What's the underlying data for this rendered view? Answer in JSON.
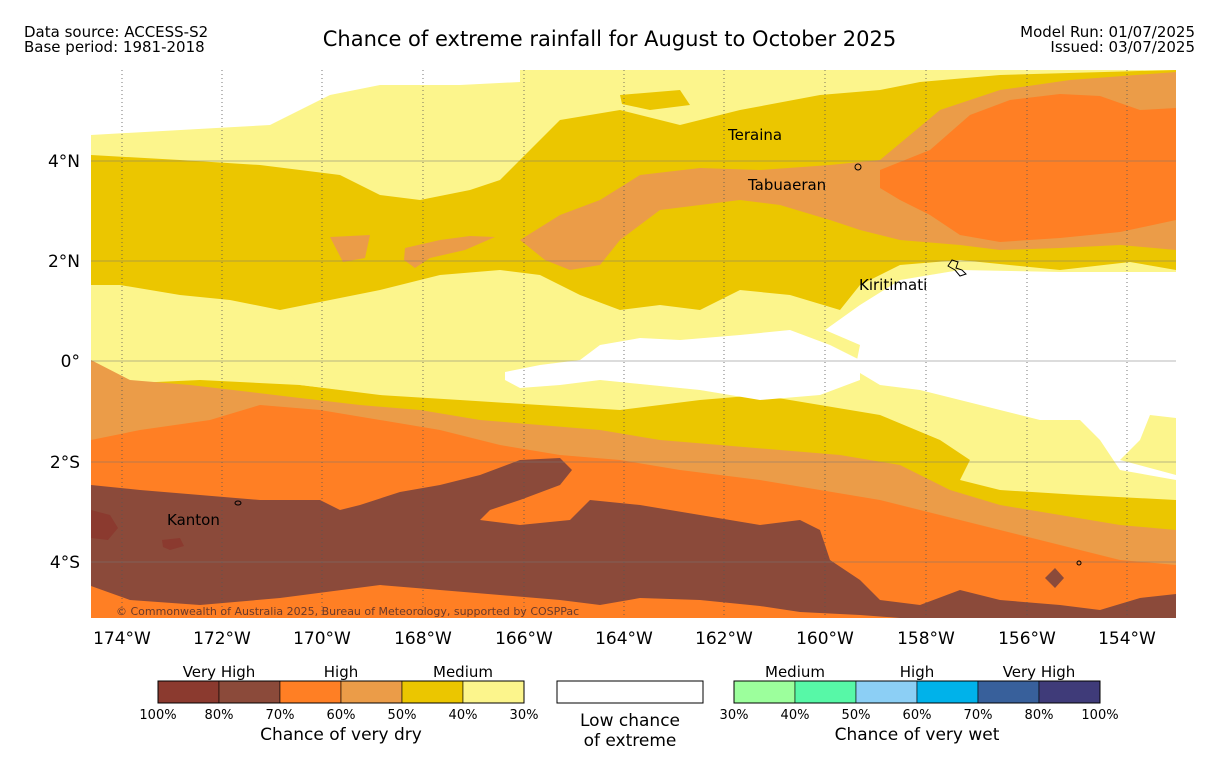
{
  "header": {
    "data_source": "Data source: ACCESS-S2",
    "base_period": "Base period: 1981-2018",
    "title": "Chance of extreme rainfall for August to October 2025",
    "model_run": "Model Run: 01/07/2025",
    "issued": "Issued: 03/07/2025"
  },
  "map": {
    "places": {
      "teraina": "Teraina",
      "tabuaeran": "Tabuaeran",
      "kiritimati": "Kiritimati",
      "kanton": "Kanton"
    },
    "copyright": "© Commonwealth of Australia 2025, Bureau of Meteorology, supported by COSPPac",
    "lon_ticks": [
      "174°W",
      "172°W",
      "170°W",
      "168°W",
      "166°W",
      "164°W",
      "162°W",
      "160°W",
      "158°W",
      "156°W",
      "154°W"
    ],
    "lat_ticks": [
      "4°N",
      "2°N",
      "0°",
      "2°S",
      "4°S"
    ]
  },
  "legend": {
    "dry": {
      "groups": [
        "Very High",
        "High",
        "Medium"
      ],
      "colors": [
        "#8b3a2f",
        "#8b4a3a",
        "#ff7f24",
        "#eb9c48",
        "#ebc600",
        "#fcf58c"
      ],
      "ticks": [
        "100%",
        "80%",
        "70%",
        "60%",
        "50%",
        "40%",
        "30%"
      ],
      "caption": "Chance of very dry"
    },
    "low": {
      "caption_line1": "Low chance",
      "caption_line2": "of extreme",
      "color": "#ffffff"
    },
    "wet": {
      "groups": [
        "Medium",
        "High",
        "Very High"
      ],
      "colors": [
        "#9cff9c",
        "#57f8a7",
        "#8ccff5",
        "#00b2ea",
        "#38609b",
        "#3f3b79"
      ],
      "ticks": [
        "30%",
        "40%",
        "50%",
        "60%",
        "70%",
        "80%",
        "100%"
      ],
      "caption": "Chance of very wet"
    }
  }
}
